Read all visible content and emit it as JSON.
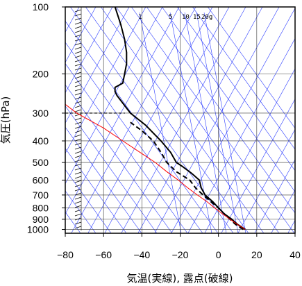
{
  "chart_data": {
    "type": "line",
    "xlabel": "気温(実線), 露点(破線)",
    "ylabel": "気圧(hPa)",
    "x_ticks": [
      -80,
      -60,
      -40,
      -20,
      0,
      20,
      40
    ],
    "y_ticks": [
      100,
      200,
      300,
      400,
      500,
      600,
      700,
      800,
      900,
      1000
    ],
    "xlim": [
      -80,
      40
    ],
    "ylim": [
      1040,
      100
    ],
    "y_scale": "log",
    "mixing_ratio_labels": [
      "1",
      "5",
      "10",
      "15",
      "20g"
    ],
    "tropopause_pressure": 300,
    "series": [
      {
        "style": "solid",
        "color": "#000000",
        "points": [
          [
            14,
            1000
          ],
          [
            10,
            950
          ],
          [
            7,
            900
          ],
          [
            3,
            850
          ],
          [
            0,
            800
          ],
          [
            -3,
            750
          ],
          [
            -7,
            700
          ],
          [
            -9,
            650
          ],
          [
            -10,
            600
          ],
          [
            -14,
            560
          ],
          [
            -19,
            520
          ],
          [
            -22,
            500
          ],
          [
            -25,
            450
          ],
          [
            -30,
            400
          ],
          [
            -38,
            340
          ],
          [
            -46,
            300
          ],
          [
            -53,
            250
          ],
          [
            -54,
            240
          ],
          [
            -54,
            230
          ],
          [
            -50,
            220
          ],
          [
            -49,
            200
          ],
          [
            -48,
            180
          ],
          [
            -48,
            160
          ],
          [
            -49,
            140
          ],
          [
            -51,
            120
          ],
          [
            -54,
            100
          ]
        ]
      },
      {
        "style": "dashed",
        "color": "#000000",
        "points": [
          [
            13,
            1000
          ],
          [
            9,
            950
          ],
          [
            6,
            900
          ],
          [
            3,
            850
          ],
          [
            0,
            800
          ],
          [
            -4,
            750
          ],
          [
            -8,
            700
          ],
          [
            -12,
            650
          ],
          [
            -15,
            600
          ],
          [
            -22,
            550
          ],
          [
            -27,
            500
          ],
          [
            -30,
            450
          ],
          [
            -34,
            400
          ],
          [
            -40,
            360
          ],
          [
            -46,
            330
          ]
        ]
      },
      {
        "style": "solid",
        "color": "#ff0000",
        "name": "",
        "points": [
          [
            14,
            1000
          ],
          [
            10,
            950
          ],
          [
            6,
            900
          ],
          [
            2,
            850
          ],
          [
            -2,
            800
          ],
          [
            -6,
            750
          ],
          [
            -11,
            700
          ],
          [
            -16,
            650
          ],
          [
            -21,
            600
          ],
          [
            -27,
            550
          ],
          [
            -33,
            500
          ],
          [
            -41,
            450
          ],
          [
            -50,
            400
          ],
          [
            -60,
            350
          ],
          [
            -74,
            300
          ],
          [
            -86,
            250
          ],
          [
            -100,
            200
          ]
        ]
      }
    ]
  }
}
